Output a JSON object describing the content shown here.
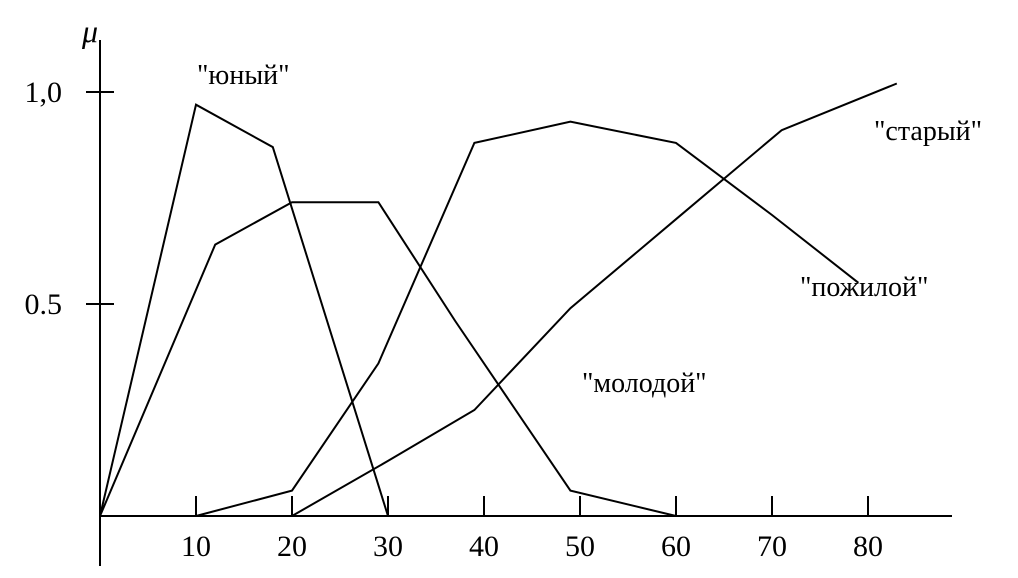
{
  "chart_data": {
    "type": "line",
    "ylabel": "μ",
    "x_ticks": [
      {
        "value": 10,
        "label": "10"
      },
      {
        "value": 20,
        "label": "20"
      },
      {
        "value": 30,
        "label": "30"
      },
      {
        "value": 40,
        "label": "40"
      },
      {
        "value": 50,
        "label": "50"
      },
      {
        "value": 60,
        "label": "60"
      },
      {
        "value": 70,
        "label": "70"
      },
      {
        "value": 80,
        "label": "80"
      }
    ],
    "y_ticks": [
      {
        "value": 1.0,
        "label": "1,0"
      },
      {
        "value": 0.5,
        "label": "0.5"
      }
    ],
    "xlim": [
      0,
      88
    ],
    "ylim": [
      0,
      1.12
    ],
    "grid": false,
    "series": [
      {
        "name": "\"юный\"",
        "points": [
          [
            0,
            0
          ],
          [
            10,
            0.97
          ],
          [
            18,
            0.87
          ],
          [
            30,
            0
          ]
        ]
      },
      {
        "name": "\"молодой\"",
        "points": [
          [
            0,
            0
          ],
          [
            12,
            0.64
          ],
          [
            20,
            0.74
          ],
          [
            29,
            0.74
          ],
          [
            37,
            0.46
          ],
          [
            49,
            0.06
          ],
          [
            60,
            0
          ]
        ]
      },
      {
        "name": "\"пожилой\"",
        "points": [
          [
            10,
            0
          ],
          [
            20,
            0.06
          ],
          [
            29,
            0.36
          ],
          [
            39,
            0.88
          ],
          [
            49,
            0.93
          ],
          [
            60,
            0.88
          ],
          [
            70,
            0.71
          ],
          [
            79,
            0.55
          ]
        ]
      },
      {
        "name": "\"старый\"",
        "points": [
          [
            20,
            0
          ],
          [
            30,
            0.13
          ],
          [
            39,
            0.25
          ],
          [
            49,
            0.49
          ],
          [
            60,
            0.7
          ],
          [
            71,
            0.91
          ],
          [
            83,
            1.02
          ]
        ]
      }
    ]
  }
}
